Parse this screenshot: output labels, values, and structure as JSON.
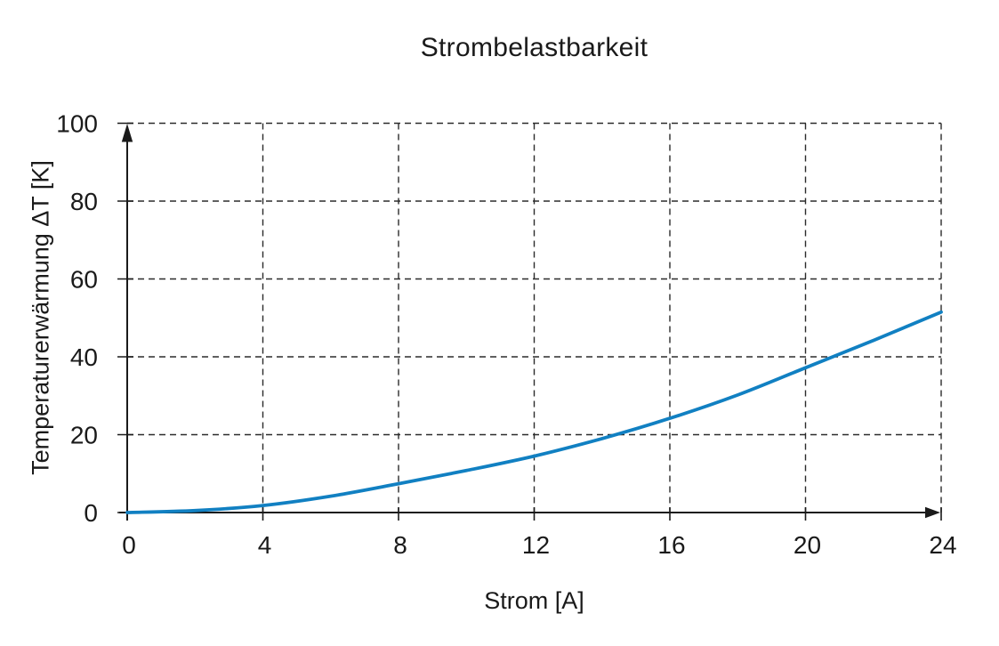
{
  "chart_data": {
    "type": "line",
    "title": "Strombelastbarkeit",
    "xlabel": "Strom [A]",
    "ylabel": "Temperaturerwärmung ΔT [K]",
    "x": [
      0,
      2,
      4,
      6,
      8,
      10,
      12,
      14,
      16,
      18,
      20,
      22,
      24
    ],
    "series": [
      {
        "name": "Temperaturerwärmung",
        "values": [
          0,
          0.5,
          1.8,
          4.2,
          7.4,
          10.8,
          14.5,
          19.0,
          24.2,
          30.2,
          37.2,
          44.2,
          51.5
        ]
      }
    ],
    "xlim": [
      0,
      24
    ],
    "ylim": [
      0,
      100
    ],
    "xticks": [
      0,
      4,
      8,
      12,
      16,
      20,
      24
    ],
    "yticks": [
      0,
      20,
      40,
      60,
      80,
      100
    ],
    "grid": "dashed",
    "legend": "none",
    "axes_style": "arrow-ended solid axes, dashed grid",
    "line_color": "#1180c2",
    "grid_color": "#2b2b2b",
    "axis_color": "#1a1a1a",
    "text_color": "#1a1a1a",
    "background_color": "#ffffff"
  }
}
